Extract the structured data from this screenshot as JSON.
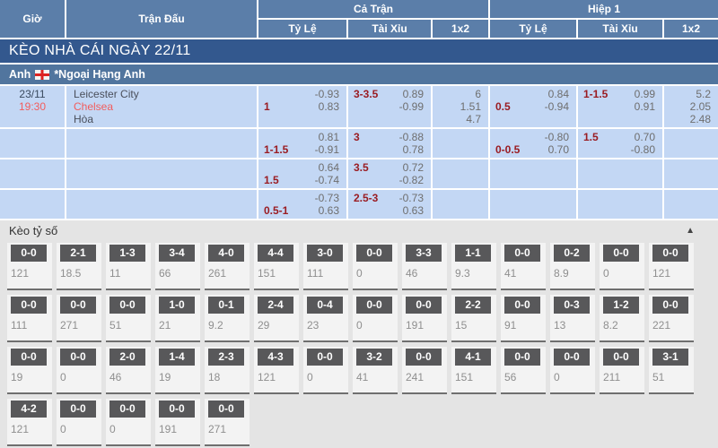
{
  "colors": {
    "header_blue": "#5b7ea9",
    "band_blue": "#33588e",
    "league_blue": "#51759e",
    "row_blue": "#c3d7f4",
    "handicap_maroon": "#9a1c22",
    "odds_gray": "#6e6e6e",
    "team_red": "#f25c5c",
    "dark_text": "#3a4a5f",
    "section_gray": "#e4e4e4",
    "score_badge_gray": "#58585a"
  },
  "table": {
    "headers": {
      "time": "Giờ",
      "match": "Trận Đấu",
      "full_match": "Cả Trận",
      "first_half": "Hiệp 1",
      "handicap": "Tỷ Lệ",
      "over_under": "Tài Xỉu",
      "one_x_two": "1x2"
    },
    "section_title": "KÈO NHÀ CÁI NGÀY 22/11",
    "league": {
      "country": "Anh",
      "name": "*Ngoại Hạng Anh",
      "flag": "england-flag"
    },
    "match": {
      "date": "23/11",
      "time": "19:30",
      "home": "Leicester City",
      "away": "Chelsea",
      "draw_label": "Hòa"
    },
    "odds_rows": [
      {
        "ft_hdp": [
          [
            "",
            "-0.93"
          ],
          [
            "1",
            "0.83"
          ]
        ],
        "ft_ou": [
          [
            "3-3.5",
            "0.89"
          ],
          [
            "",
            "-0.99"
          ]
        ],
        "ft_1x2": [
          "6",
          "1.51",
          "4.7"
        ],
        "h1_hdp": [
          [
            "",
            "0.84"
          ],
          [
            "0.5",
            "-0.94"
          ]
        ],
        "h1_ou": [
          [
            "1-1.5",
            "0.99"
          ],
          [
            "",
            "0.91"
          ]
        ],
        "h1_1x2": [
          "5.2",
          "2.05",
          "2.48"
        ]
      },
      {
        "ft_hdp": [
          [
            "",
            "0.81"
          ],
          [
            "1-1.5",
            "-0.91"
          ]
        ],
        "ft_ou": [
          [
            "3",
            "-0.88"
          ],
          [
            "",
            "0.78"
          ]
        ],
        "ft_1x2": [],
        "h1_hdp": [
          [
            "",
            "-0.80"
          ],
          [
            "0-0.5",
            "0.70"
          ]
        ],
        "h1_ou": [
          [
            "1.5",
            "0.70"
          ],
          [
            "",
            "-0.80"
          ]
        ],
        "h1_1x2": []
      },
      {
        "ft_hdp": [
          [
            "",
            "0.64"
          ],
          [
            "1.5",
            "-0.74"
          ]
        ],
        "ft_ou": [
          [
            "3.5",
            "0.72"
          ],
          [
            "",
            "-0.82"
          ]
        ],
        "ft_1x2": [],
        "h1_hdp": [
          [
            "",
            ""
          ],
          [
            "",
            ""
          ]
        ],
        "h1_ou": [
          [
            "",
            ""
          ],
          [
            "",
            ""
          ]
        ],
        "h1_1x2": []
      },
      {
        "ft_hdp": [
          [
            "",
            "-0.73"
          ],
          [
            "0.5-1",
            "0.63"
          ]
        ],
        "ft_ou": [
          [
            "2.5-3",
            "-0.73"
          ],
          [
            "",
            "0.63"
          ]
        ],
        "ft_1x2": [],
        "h1_hdp": [
          [
            "",
            ""
          ],
          [
            "",
            ""
          ]
        ],
        "h1_ou": [
          [
            "",
            ""
          ],
          [
            "",
            ""
          ]
        ],
        "h1_1x2": []
      }
    ]
  },
  "score_section": {
    "title": "Kèo tỷ số",
    "collapse_icon": "▲",
    "rows": [
      [
        {
          "score": "0-0",
          "odd": "121"
        },
        {
          "score": "2-1",
          "odd": "18.5"
        },
        {
          "score": "1-3",
          "odd": "11"
        },
        {
          "score": "3-4",
          "odd": "66"
        },
        {
          "score": "4-0",
          "odd": "261"
        },
        {
          "score": "4-4",
          "odd": "151"
        },
        {
          "score": "3-0",
          "odd": "111"
        },
        {
          "score": "0-0",
          "odd": "0"
        },
        {
          "score": "3-3",
          "odd": "46"
        },
        {
          "score": "1-1",
          "odd": "9.3"
        },
        {
          "score": "0-0",
          "odd": "41"
        },
        {
          "score": "0-2",
          "odd": "8.9"
        },
        {
          "score": "0-0",
          "odd": "0"
        },
        {
          "score": "0-0",
          "odd": "121"
        }
      ],
      [
        {
          "score": "0-0",
          "odd": "111"
        },
        {
          "score": "0-0",
          "odd": "271"
        },
        {
          "score": "0-0",
          "odd": "51"
        },
        {
          "score": "1-0",
          "odd": "21"
        },
        {
          "score": "0-1",
          "odd": "9.2"
        },
        {
          "score": "2-4",
          "odd": "29"
        },
        {
          "score": "0-4",
          "odd": "23"
        },
        {
          "score": "0-0",
          "odd": "0"
        },
        {
          "score": "0-0",
          "odd": "191"
        },
        {
          "score": "2-2",
          "odd": "15"
        },
        {
          "score": "0-0",
          "odd": "91"
        },
        {
          "score": "0-3",
          "odd": "13"
        },
        {
          "score": "1-2",
          "odd": "8.2"
        },
        {
          "score": "0-0",
          "odd": "221"
        }
      ],
      [
        {
          "score": "0-0",
          "odd": "19"
        },
        {
          "score": "0-0",
          "odd": "0"
        },
        {
          "score": "2-0",
          "odd": "46"
        },
        {
          "score": "1-4",
          "odd": "19"
        },
        {
          "score": "2-3",
          "odd": "18"
        },
        {
          "score": "4-3",
          "odd": "121"
        },
        {
          "score": "0-0",
          "odd": "0"
        },
        {
          "score": "3-2",
          "odd": "41"
        },
        {
          "score": "0-0",
          "odd": "241"
        },
        {
          "score": "4-1",
          "odd": "151"
        },
        {
          "score": "0-0",
          "odd": "56"
        },
        {
          "score": "0-0",
          "odd": "0"
        },
        {
          "score": "0-0",
          "odd": "211"
        },
        {
          "score": "3-1",
          "odd": "51"
        }
      ],
      [
        {
          "score": "4-2",
          "odd": "121"
        },
        {
          "score": "0-0",
          "odd": "0"
        },
        {
          "score": "0-0",
          "odd": "0"
        },
        {
          "score": "0-0",
          "odd": "191"
        },
        {
          "score": "0-0",
          "odd": "271"
        }
      ]
    ]
  }
}
